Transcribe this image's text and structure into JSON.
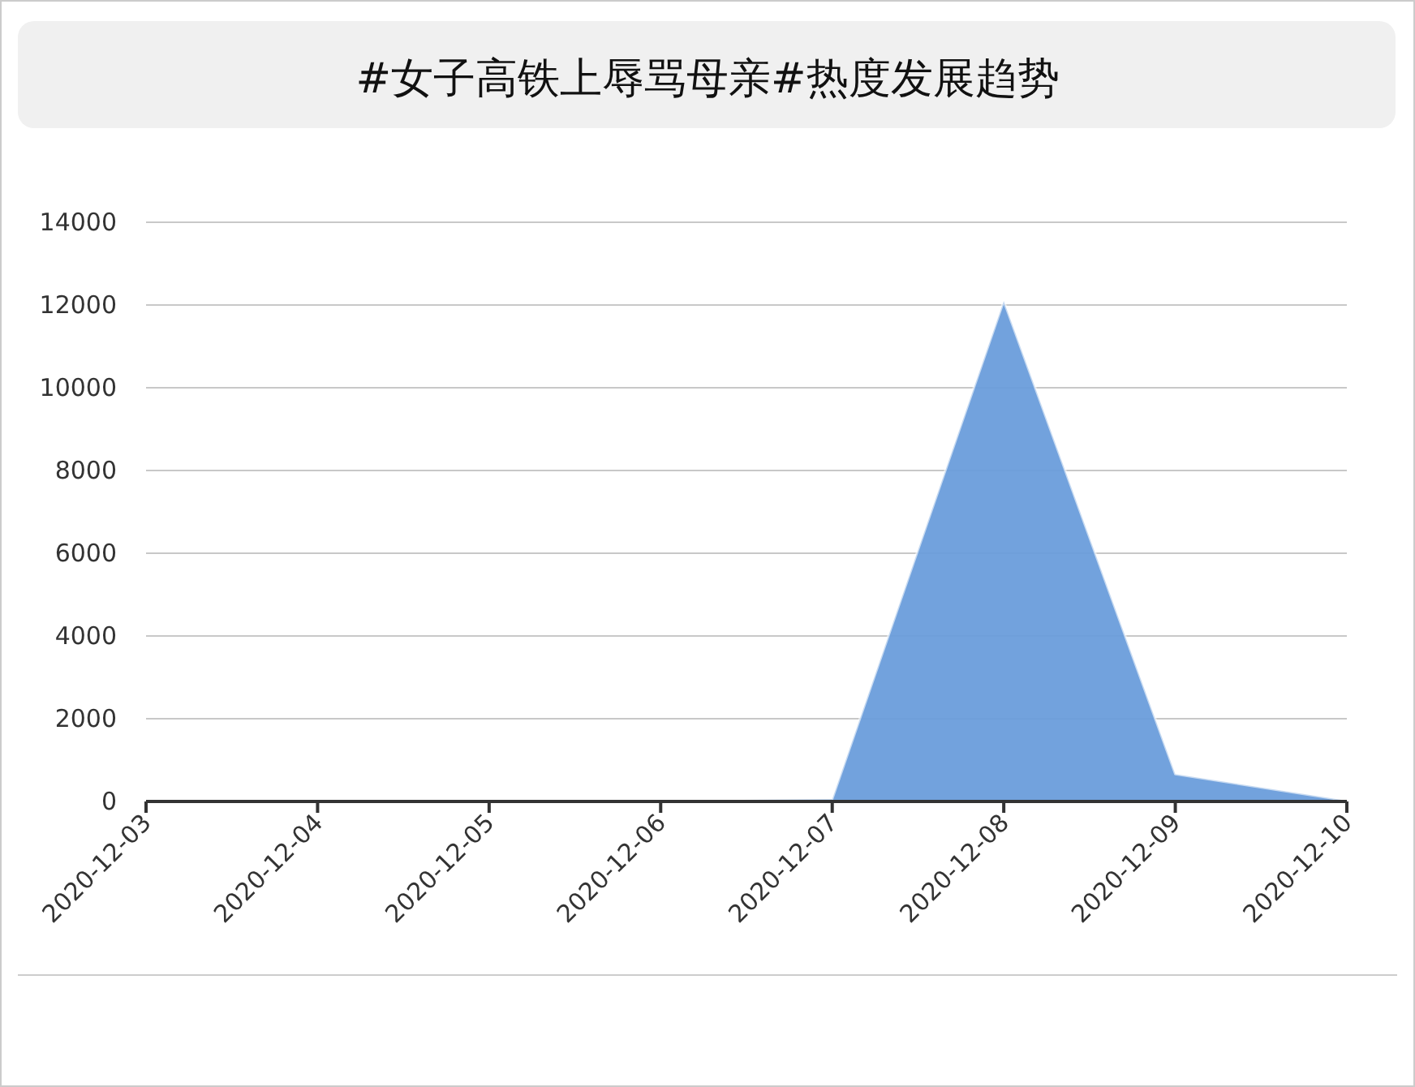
{
  "chart_data": {
    "type": "area",
    "title": "#女子高铁上辱骂母亲#热度发展趋势",
    "categories": [
      "2020-12-03",
      "2020-12-04",
      "2020-12-05",
      "2020-12-06",
      "2020-12-07",
      "2020-12-08",
      "2020-12-09",
      "2020-12-10"
    ],
    "series": [
      {
        "color": "#6a9ddb",
        "values": [
          0,
          0,
          0,
          20,
          60,
          12100,
          660,
          20
        ]
      }
    ],
    "ylim": [
      0,
      14000
    ],
    "yticks": [
      0,
      2000,
      4000,
      6000,
      8000,
      10000,
      12000,
      14000
    ],
    "grid": "y"
  }
}
